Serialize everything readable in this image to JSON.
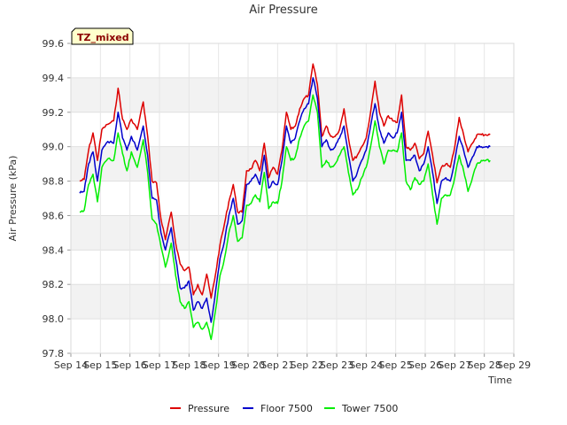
{
  "chart_data": {
    "type": "line",
    "title": "Air Pressure",
    "xlabel": "Time",
    "ylabel": "Air Pressure (kPa)",
    "badge": "TZ_mixed",
    "ylim": [
      97.8,
      99.6
    ],
    "yticks": [
      "97.8",
      "98.0",
      "98.2",
      "98.4",
      "98.6",
      "98.8",
      "99.0",
      "99.2",
      "99.4",
      "99.6"
    ],
    "xlim": [
      14,
      29
    ],
    "xticks": [
      "Sep 14",
      "Sep 15",
      "Sep 16",
      "Sep 17",
      "Sep 18",
      "Sep 19",
      "Sep 20",
      "Sep 21",
      "Sep 22",
      "Sep 23",
      "Sep 24",
      "Sep 25",
      "Sep 26",
      "Sep 27",
      "Sep 28",
      "Sep 29"
    ],
    "legend_position": "bottom",
    "series": [
      {
        "name": "Pressure",
        "color": "#dd0000",
        "x": [
          14.3,
          14.45,
          14.6,
          14.75,
          14.9,
          15.05,
          15.25,
          15.45,
          15.6,
          15.75,
          15.9,
          16.05,
          16.25,
          16.45,
          16.6,
          16.75,
          16.9,
          17.05,
          17.2,
          17.4,
          17.55,
          17.7,
          17.85,
          18.0,
          18.15,
          18.3,
          18.45,
          18.6,
          18.75,
          18.9,
          19.05,
          19.2,
          19.35,
          19.5,
          19.65,
          19.8,
          19.95,
          20.1,
          20.25,
          20.4,
          20.55,
          20.7,
          20.85,
          21.0,
          21.15,
          21.3,
          21.45,
          21.6,
          21.75,
          21.9,
          22.05,
          22.2,
          22.35,
          22.5,
          22.65,
          22.8,
          22.95,
          23.1,
          23.25,
          23.4,
          23.55,
          23.7,
          23.85,
          24.0,
          24.15,
          24.3,
          24.45,
          24.6,
          24.75,
          24.9,
          25.05,
          25.2,
          25.35,
          25.5,
          25.65,
          25.8,
          25.95,
          26.1,
          26.25,
          26.4,
          26.55,
          26.7,
          26.85,
          27.0,
          27.15,
          27.3,
          27.45,
          27.6,
          27.75,
          27.9,
          28.05,
          28.2
        ],
        "values": [
          98.8,
          98.81,
          98.98,
          99.08,
          98.92,
          99.1,
          99.13,
          99.15,
          99.34,
          99.16,
          99.1,
          99.16,
          99.1,
          99.26,
          99.06,
          98.8,
          98.79,
          98.58,
          98.46,
          98.62,
          98.44,
          98.32,
          98.28,
          98.3,
          98.14,
          98.2,
          98.14,
          98.26,
          98.12,
          98.26,
          98.43,
          98.55,
          98.68,
          98.78,
          98.62,
          98.62,
          98.86,
          98.87,
          98.92,
          98.86,
          99.02,
          98.82,
          98.88,
          98.84,
          98.98,
          99.2,
          99.1,
          99.12,
          99.22,
          99.28,
          99.3,
          99.48,
          99.36,
          99.06,
          99.12,
          99.06,
          99.06,
          99.1,
          99.22,
          99.05,
          98.92,
          98.95,
          99.0,
          99.05,
          99.2,
          99.38,
          99.2,
          99.12,
          99.18,
          99.15,
          99.14,
          99.3,
          99.0,
          98.98,
          99.02,
          98.93,
          98.96,
          99.09,
          98.95,
          98.79,
          98.88,
          98.9,
          98.88,
          99.0,
          99.17,
          99.07,
          98.97,
          99.02,
          99.07,
          99.07,
          99.07,
          99.07
        ]
      },
      {
        "name": "Floor 7500",
        "color": "#0000cc",
        "x": [
          14.3,
          14.45,
          14.6,
          14.75,
          14.9,
          15.05,
          15.25,
          15.45,
          15.6,
          15.75,
          15.9,
          16.05,
          16.25,
          16.45,
          16.6,
          16.75,
          16.9,
          17.05,
          17.2,
          17.4,
          17.55,
          17.7,
          17.85,
          18.0,
          18.15,
          18.3,
          18.45,
          18.6,
          18.75,
          18.9,
          19.05,
          19.2,
          19.35,
          19.5,
          19.65,
          19.8,
          19.95,
          20.1,
          20.25,
          20.4,
          20.55,
          20.7,
          20.85,
          21.0,
          21.15,
          21.3,
          21.45,
          21.6,
          21.75,
          21.9,
          22.05,
          22.2,
          22.35,
          22.5,
          22.65,
          22.8,
          22.95,
          23.1,
          23.25,
          23.4,
          23.55,
          23.7,
          23.85,
          24.0,
          24.15,
          24.3,
          24.45,
          24.6,
          24.75,
          24.9,
          25.05,
          25.2,
          25.35,
          25.5,
          25.65,
          25.8,
          25.95,
          26.1,
          26.25,
          26.4,
          26.55,
          26.7,
          26.85,
          27.0,
          27.15,
          27.3,
          27.45,
          27.6,
          27.75,
          27.9,
          28.05,
          28.2
        ],
        "values": [
          98.73,
          98.74,
          98.9,
          98.97,
          98.8,
          98.98,
          99.03,
          99.02,
          99.2,
          99.05,
          98.98,
          99.06,
          98.98,
          99.12,
          98.95,
          98.7,
          98.69,
          98.5,
          98.4,
          98.53,
          98.35,
          98.18,
          98.18,
          98.22,
          98.05,
          98.1,
          98.06,
          98.12,
          97.98,
          98.16,
          98.35,
          98.45,
          98.6,
          98.7,
          98.55,
          98.57,
          98.78,
          98.8,
          98.84,
          98.78,
          98.95,
          98.76,
          98.8,
          98.78,
          98.92,
          99.12,
          99.02,
          99.05,
          99.15,
          99.22,
          99.25,
          99.4,
          99.28,
          99.0,
          99.04,
          98.98,
          99.0,
          99.05,
          99.12,
          98.95,
          98.8,
          98.85,
          98.92,
          98.98,
          99.12,
          99.25,
          99.1,
          99.02,
          99.08,
          99.05,
          99.08,
          99.2,
          98.92,
          98.92,
          98.95,
          98.86,
          98.9,
          99.0,
          98.85,
          98.67,
          98.8,
          98.82,
          98.8,
          98.92,
          99.06,
          98.98,
          98.88,
          98.94,
          99.0,
          99.0,
          99.0,
          99.0
        ]
      },
      {
        "name": "Tower 7500",
        "color": "#00ee00",
        "x": [
          14.3,
          14.45,
          14.6,
          14.75,
          14.9,
          15.05,
          15.25,
          15.45,
          15.6,
          15.75,
          15.9,
          16.05,
          16.25,
          16.45,
          16.6,
          16.75,
          16.9,
          17.05,
          17.2,
          17.4,
          17.55,
          17.7,
          17.85,
          18.0,
          18.15,
          18.3,
          18.45,
          18.6,
          18.75,
          18.9,
          19.05,
          19.2,
          19.35,
          19.5,
          19.65,
          19.8,
          19.95,
          20.1,
          20.25,
          20.4,
          20.55,
          20.7,
          20.85,
          21.0,
          21.15,
          21.3,
          21.45,
          21.6,
          21.75,
          21.9,
          22.05,
          22.2,
          22.35,
          22.5,
          22.65,
          22.8,
          22.95,
          23.1,
          23.25,
          23.4,
          23.55,
          23.7,
          23.85,
          24.0,
          24.15,
          24.3,
          24.45,
          24.6,
          24.75,
          24.9,
          25.05,
          25.2,
          25.35,
          25.5,
          25.65,
          25.8,
          25.95,
          26.1,
          26.25,
          26.4,
          26.55,
          26.7,
          26.85,
          27.0,
          27.15,
          27.3,
          27.45,
          27.6,
          27.75,
          27.9,
          28.05,
          28.2
        ],
        "values": [
          98.62,
          98.63,
          98.78,
          98.84,
          98.68,
          98.88,
          98.93,
          98.92,
          99.08,
          98.96,
          98.86,
          98.97,
          98.88,
          99.04,
          98.85,
          98.58,
          98.55,
          98.42,
          98.3,
          98.44,
          98.25,
          98.1,
          98.06,
          98.1,
          97.95,
          97.98,
          97.94,
          97.98,
          97.88,
          98.05,
          98.25,
          98.35,
          98.5,
          98.6,
          98.45,
          98.47,
          98.66,
          98.67,
          98.72,
          98.68,
          98.85,
          98.64,
          98.68,
          98.67,
          98.8,
          99.0,
          98.92,
          98.94,
          99.05,
          99.12,
          99.15,
          99.3,
          99.2,
          98.88,
          98.92,
          98.88,
          98.9,
          98.95,
          99.0,
          98.85,
          98.72,
          98.75,
          98.82,
          98.88,
          99.0,
          99.15,
          99.0,
          98.9,
          98.98,
          98.98,
          98.97,
          99.08,
          98.8,
          98.75,
          98.82,
          98.78,
          98.8,
          98.9,
          98.72,
          98.55,
          98.7,
          98.72,
          98.72,
          98.82,
          98.95,
          98.86,
          98.74,
          98.82,
          98.9,
          98.92,
          98.92,
          98.92
        ]
      }
    ]
  }
}
